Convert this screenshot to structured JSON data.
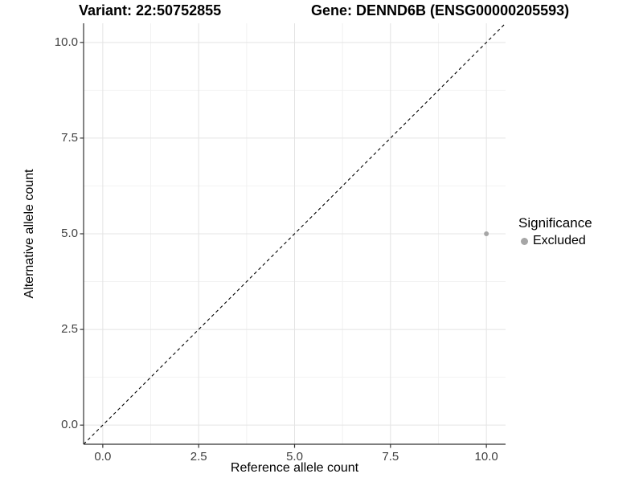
{
  "titles": {
    "left": "Variant: 22:50752855",
    "right": "Gene: DENND6B (ENSG00000205593)"
  },
  "chart_data": {
    "type": "scatter",
    "title": "Variant: 22:50752855   Gene: DENND6B (ENSG00000205593)",
    "xlabel": "Reference allele count",
    "ylabel": "Alternative allele count",
    "xlim": [
      -0.5,
      10.5
    ],
    "ylim": [
      -0.5,
      10.5
    ],
    "x_ticks": {
      "values": [
        0,
        2.5,
        5,
        7.5,
        10
      ],
      "labels": [
        "0.0",
        "2.5",
        "5.0",
        "7.5",
        "10.0"
      ]
    },
    "y_ticks": {
      "values": [
        0,
        2.5,
        5,
        7.5,
        10
      ],
      "labels": [
        "0.0",
        "2.5",
        "5.0",
        "7.5",
        "10.0"
      ]
    },
    "x_minor": [
      1.25,
      3.75,
      6.25,
      8.75
    ],
    "y_minor": [
      1.25,
      3.75,
      6.25,
      8.75
    ],
    "grid": "major and minor, light gray on white",
    "points": [
      {
        "x": 10,
        "y": 5,
        "series": "Excluded"
      }
    ],
    "reference_line": {
      "slope": 1,
      "intercept": 0,
      "style": "dashed",
      "color": "#000000"
    },
    "legend": {
      "title": "Significance",
      "position": "right",
      "items": [
        {
          "label": "Excluded",
          "color": "#a6a6a6"
        }
      ]
    }
  },
  "colors": {
    "background": "#ffffff",
    "grid_major": "#e4e4e4",
    "grid_minor": "#f2f2f2",
    "axis": "#333333",
    "tick_text": "#404040",
    "point": "#a6a6a6"
  }
}
